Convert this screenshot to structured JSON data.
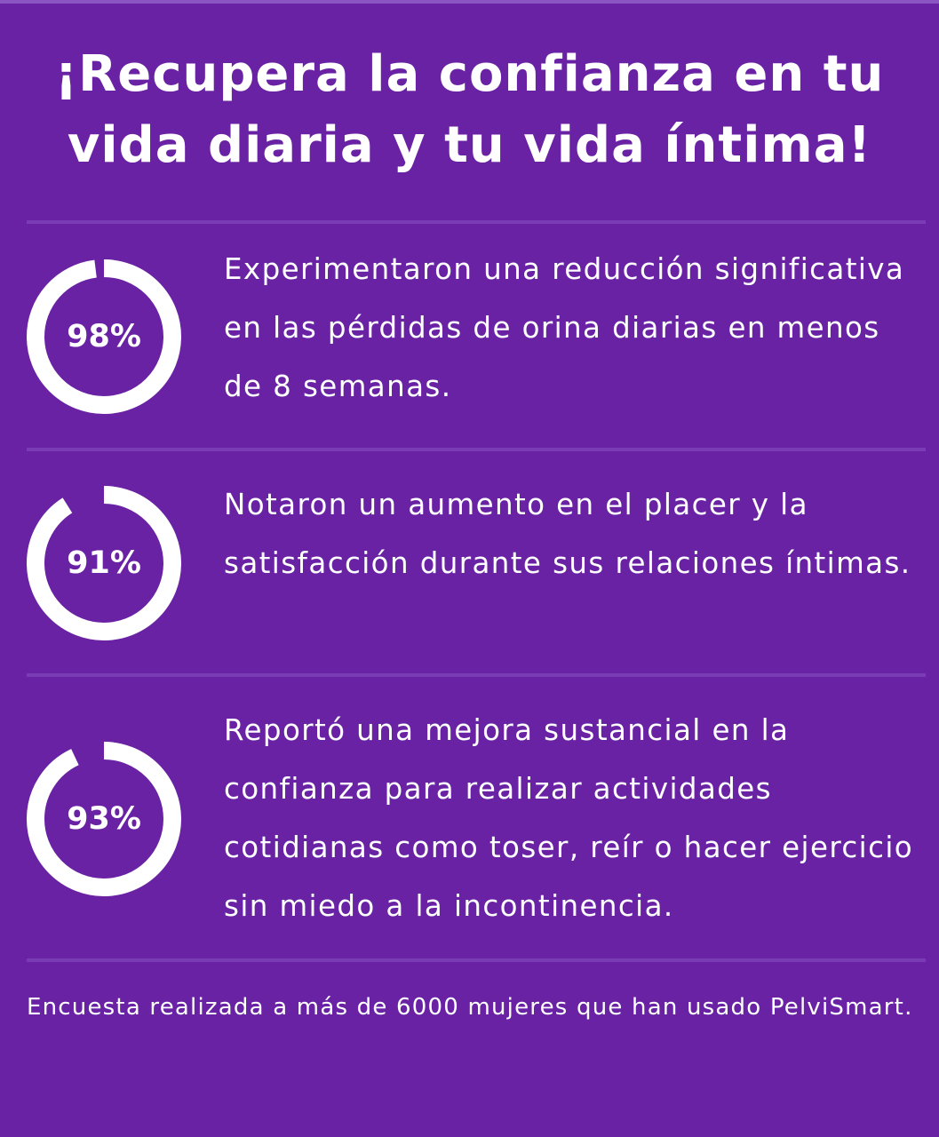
{
  "headline": "¡Recupera la confianza en tu vida diaria y tu vida íntima!",
  "colors": {
    "background": "#6a22a4",
    "ring": "#ffffff",
    "divider": "#7a3cb4"
  },
  "stats": [
    {
      "label": "98%",
      "value": 98,
      "text": "Experimentaron una reducción significativa en las pérdidas de orina diarias en menos de 8 semanas."
    },
    {
      "label": "91%",
      "value": 91,
      "text": "Notaron un aumento en el placer y la satisfacción durante sus relaciones íntimas."
    },
    {
      "label": "93%",
      "value": 93,
      "text": "Reportó una mejora sustancial en la confianza para realizar actividades cotidianas como toser, reír o hacer ejercicio sin miedo a la incontinencia."
    }
  ],
  "footnote": "Encuesta realizada a más de 6000 mujeres que han usado PelviSmart."
}
